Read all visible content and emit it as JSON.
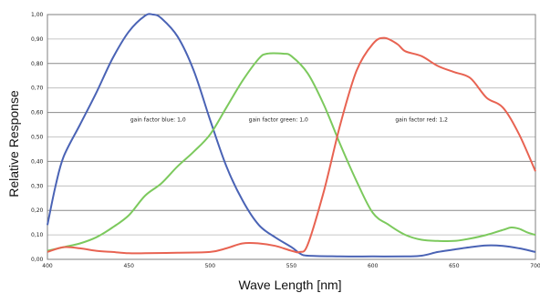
{
  "chart_data": {
    "type": "line",
    "xlabel": "Wave Length [nm]",
    "ylabel": "Relative Response",
    "xlim": [
      400,
      700
    ],
    "ylim": [
      0,
      1.0
    ],
    "x_ticks": [
      "400",
      "450",
      "500",
      "550",
      "600",
      "650",
      "700"
    ],
    "y_ticks": [
      "0,00",
      "0,10",
      "0,20",
      "0,30",
      "0,40",
      "0,50",
      "0,60",
      "0,70",
      "0,80",
      "0,90",
      "1,00"
    ],
    "grid": "horizontal",
    "series": [
      {
        "color": "#4a63b5",
        "points": [
          [
            400,
            0.14
          ],
          [
            405,
            0.3
          ],
          [
            410,
            0.42
          ],
          [
            420,
            0.55
          ],
          [
            430,
            0.68
          ],
          [
            440,
            0.82
          ],
          [
            450,
            0.93
          ],
          [
            460,
            0.995
          ],
          [
            465,
            1.0
          ],
          [
            470,
            0.985
          ],
          [
            480,
            0.91
          ],
          [
            490,
            0.77
          ],
          [
            500,
            0.57
          ],
          [
            510,
            0.38
          ],
          [
            520,
            0.24
          ],
          [
            530,
            0.14
          ],
          [
            540,
            0.09
          ],
          [
            550,
            0.05
          ],
          [
            555,
            0.025
          ],
          [
            560,
            0.015
          ],
          [
            580,
            0.012
          ],
          [
            600,
            0.012
          ],
          [
            620,
            0.012
          ],
          [
            630,
            0.015
          ],
          [
            640,
            0.03
          ],
          [
            650,
            0.04
          ],
          [
            660,
            0.05
          ],
          [
            670,
            0.057
          ],
          [
            680,
            0.055
          ],
          [
            690,
            0.045
          ],
          [
            700,
            0.03
          ]
        ]
      },
      {
        "color": "#7cc95d",
        "points": [
          [
            400,
            0.035
          ],
          [
            410,
            0.05
          ],
          [
            420,
            0.065
          ],
          [
            430,
            0.09
          ],
          [
            440,
            0.13
          ],
          [
            450,
            0.18
          ],
          [
            460,
            0.26
          ],
          [
            470,
            0.31
          ],
          [
            480,
            0.38
          ],
          [
            490,
            0.44
          ],
          [
            500,
            0.51
          ],
          [
            510,
            0.62
          ],
          [
            520,
            0.73
          ],
          [
            530,
            0.82
          ],
          [
            535,
            0.84
          ],
          [
            545,
            0.84
          ],
          [
            550,
            0.83
          ],
          [
            560,
            0.76
          ],
          [
            570,
            0.63
          ],
          [
            580,
            0.47
          ],
          [
            590,
            0.32
          ],
          [
            600,
            0.19
          ],
          [
            610,
            0.14
          ],
          [
            620,
            0.1
          ],
          [
            630,
            0.08
          ],
          [
            640,
            0.075
          ],
          [
            650,
            0.075
          ],
          [
            660,
            0.085
          ],
          [
            670,
            0.1
          ],
          [
            680,
            0.12
          ],
          [
            685,
            0.13
          ],
          [
            690,
            0.125
          ],
          [
            695,
            0.11
          ],
          [
            700,
            0.1
          ]
        ]
      },
      {
        "color": "#e86352",
        "points": [
          [
            400,
            0.03
          ],
          [
            410,
            0.05
          ],
          [
            420,
            0.045
          ],
          [
            430,
            0.035
          ],
          [
            440,
            0.03
          ],
          [
            450,
            0.025
          ],
          [
            460,
            0.025
          ],
          [
            480,
            0.027
          ],
          [
            500,
            0.03
          ],
          [
            510,
            0.045
          ],
          [
            520,
            0.065
          ],
          [
            530,
            0.065
          ],
          [
            540,
            0.055
          ],
          [
            550,
            0.035
          ],
          [
            555,
            0.03
          ],
          [
            560,
            0.06
          ],
          [
            570,
            0.28
          ],
          [
            580,
            0.55
          ],
          [
            590,
            0.77
          ],
          [
            600,
            0.88
          ],
          [
            607,
            0.905
          ],
          [
            615,
            0.88
          ],
          [
            620,
            0.85
          ],
          [
            630,
            0.83
          ],
          [
            640,
            0.79
          ],
          [
            650,
            0.765
          ],
          [
            660,
            0.74
          ],
          [
            670,
            0.66
          ],
          [
            680,
            0.62
          ],
          [
            690,
            0.51
          ],
          [
            700,
            0.36
          ]
        ]
      }
    ],
    "annotations": [
      {
        "text": "gain factor blue: 1,0",
        "x": 468,
        "y": 0.57
      },
      {
        "text": "gain factor green: 1,0",
        "x": 542,
        "y": 0.57
      },
      {
        "text": "gain factor red: 1,2",
        "x": 630,
        "y": 0.57
      }
    ]
  }
}
